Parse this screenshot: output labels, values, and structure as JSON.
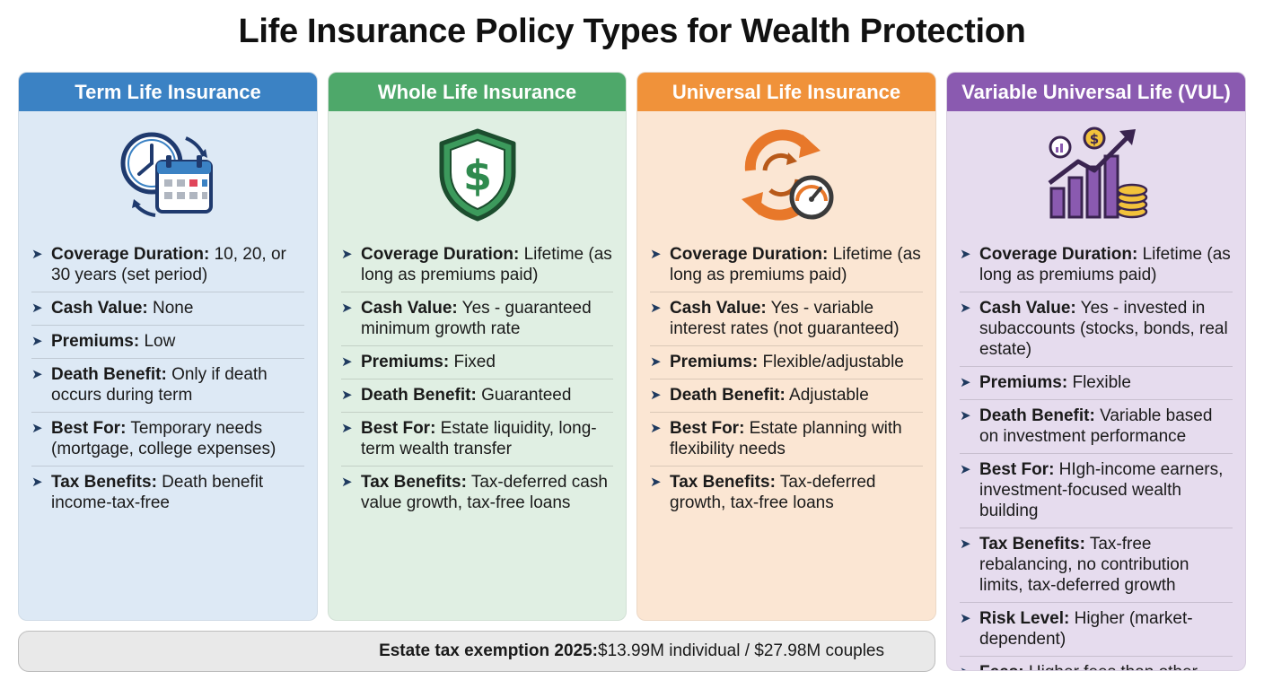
{
  "title": "Life Insurance Policy Types for Wealth Protection",
  "cards": [
    {
      "name": "Term Life Insurance",
      "header_color": "#3b82c4",
      "bg_color": "#dde9f5",
      "icon": "clock-calendar-icon",
      "items": [
        {
          "label": "Coverage Duration:",
          "value": " 10, 20, or 30 years (set period)"
        },
        {
          "label": "Cash Value:",
          "value": " None"
        },
        {
          "label": "Premiums:",
          "value": " Low"
        },
        {
          "label": "Death Benefit:",
          "value": " Only if death occurs during term"
        },
        {
          "label": "Best For:",
          "value": " Temporary needs (mortgage, college expenses)"
        },
        {
          "label": "Tax Benefits:",
          "value": " Death benefit income-tax-free"
        }
      ]
    },
    {
      "name": "Whole Life Insurance",
      "header_color": "#4ea86a",
      "bg_color": "#e0efe3",
      "icon": "shield-dollar-icon",
      "items": [
        {
          "label": "Coverage Duration:",
          "value": " Lifetime (as long as premiums paid)"
        },
        {
          "label": "Cash Value:",
          "value": " Yes - guaranteed minimum growth rate"
        },
        {
          "label": "Premiums:",
          "value": " Fixed"
        },
        {
          "label": "Death Benefit:",
          "value": " Guaranteed"
        },
        {
          "label": "Best For:",
          "value": " Estate liquidity, long-term wealth transfer"
        },
        {
          "label": "Tax Benefits:",
          "value": " Tax-deferred cash value growth, tax-free loans"
        }
      ]
    },
    {
      "name": "Universal Life Insurance",
      "header_color": "#f0923a",
      "bg_color": "#fbe6d3",
      "icon": "cycle-gauge-icon",
      "items": [
        {
          "label": "Coverage Duration:",
          "value": " Lifetime (as long as premiums paid)"
        },
        {
          "label": "Cash Value:",
          "value": " Yes - variable interest rates (not guaranteed)"
        },
        {
          "label": "Premiums:",
          "value": " Flexible/adjustable"
        },
        {
          "label": "Death Benefit:",
          "value": " Adjustable"
        },
        {
          "label": "Best For:",
          "value": " Estate planning with flexibility needs"
        },
        {
          "label": "Tax Benefits:",
          "value": " Tax-deferred growth, tax-free loans"
        }
      ]
    },
    {
      "name": "Variable Universal Life (VUL)",
      "header_color": "#8a5ab0",
      "bg_color": "#e6dcee",
      "icon": "growth-chart-coins-icon",
      "items": [
        {
          "label": "Coverage Duration:",
          "value": " Lifetime (as long as premiums paid)"
        },
        {
          "label": "Cash Value:",
          "value": " Yes - invested in subaccounts (stocks, bonds, real estate)"
        },
        {
          "label": "Premiums:",
          "value": " Flexible"
        },
        {
          "label": "Death Benefit:",
          "value": " Variable based on investment performance"
        },
        {
          "label": "Best For:",
          "value": " HIgh-income earners, investment-focused wealth building"
        },
        {
          "label": "Tax Benefits:",
          "value": " Tax-free rebalancing, no contribution limits, tax-deferred growth"
        },
        {
          "label": "Risk Level:",
          "value": " Higher (market-dependent)"
        },
        {
          "label": "Fees:",
          "value": " Higher fees than other types"
        }
      ]
    }
  ],
  "footer": {
    "label": "Estate tax exemption 2025:",
    "value": " $13.99M individual / $27.98M couples"
  }
}
